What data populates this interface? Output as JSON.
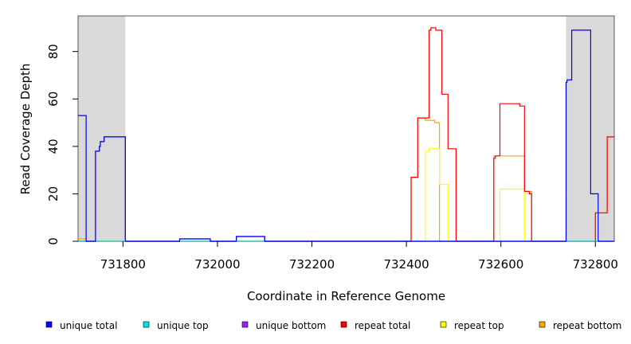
{
  "chart_data": {
    "type": "line",
    "xlabel": "Coordinate in Reference Genome",
    "ylabel": "Read Coverage Depth",
    "xlim": [
      731705,
      732840
    ],
    "ylim": [
      0,
      95
    ],
    "x_ticks": [
      731800,
      732000,
      732200,
      732400,
      732600,
      732800
    ],
    "x_tick_labels": [
      "731800",
      "732000",
      "732200",
      "732400",
      "732600",
      "732800"
    ],
    "y_ticks": [
      0,
      20,
      40,
      60,
      80
    ],
    "y_tick_labels": [
      "0",
      "20",
      "40",
      "60",
      "80"
    ],
    "shaded_regions": [
      [
        731705,
        731805
      ],
      [
        732738,
        732840
      ]
    ],
    "grid": false,
    "legend_position": "bottom",
    "series": [
      {
        "name": "unique total",
        "color": "#0000ff",
        "points": [
          [
            731705,
            53
          ],
          [
            731722,
            53
          ],
          [
            731722,
            0
          ],
          [
            731742,
            0
          ],
          [
            731742,
            38
          ],
          [
            731750,
            38
          ],
          [
            731750,
            40
          ],
          [
            731752,
            40
          ],
          [
            731752,
            42
          ],
          [
            731760,
            42
          ],
          [
            731760,
            44
          ],
          [
            731805,
            44
          ],
          [
            731805,
            0
          ],
          [
            731920,
            0
          ],
          [
            731920,
            1
          ],
          [
            731985,
            1
          ],
          [
            731985,
            0
          ],
          [
            732040,
            0
          ],
          [
            732040,
            2
          ],
          [
            732100,
            2
          ],
          [
            732100,
            0
          ],
          [
            732738,
            0
          ],
          [
            732738,
            67
          ],
          [
            732740,
            67
          ],
          [
            732740,
            68
          ],
          [
            732750,
            68
          ],
          [
            732750,
            89
          ],
          [
            732790,
            89
          ],
          [
            732790,
            20
          ],
          [
            732806,
            20
          ],
          [
            732806,
            0
          ],
          [
            732840,
            0
          ]
        ]
      },
      {
        "name": "unique top",
        "color": "#00e5e5",
        "points": [
          [
            731705,
            0
          ],
          [
            732840,
            0
          ]
        ]
      },
      {
        "name": "unique bottom",
        "color": "#a020f0",
        "points": [
          [
            731705,
            0
          ],
          [
            731742,
            0
          ],
          [
            731742,
            38
          ],
          [
            731750,
            38
          ],
          [
            731750,
            40
          ],
          [
            731752,
            40
          ],
          [
            731752,
            42
          ],
          [
            731760,
            42
          ],
          [
            731760,
            44
          ],
          [
            731805,
            44
          ],
          [
            731805,
            0
          ],
          [
            731920,
            0
          ],
          [
            731920,
            1
          ],
          [
            731985,
            1
          ],
          [
            731985,
            0
          ],
          [
            732040,
            0
          ],
          [
            732040,
            2
          ],
          [
            732100,
            2
          ],
          [
            732100,
            0
          ],
          [
            732840,
            0
          ]
        ]
      },
      {
        "name": "repeat total",
        "color": "#ff0000",
        "points": [
          [
            731705,
            0
          ],
          [
            732410,
            0
          ],
          [
            732410,
            27
          ],
          [
            732424,
            27
          ],
          [
            732424,
            52
          ],
          [
            732448,
            52
          ],
          [
            732448,
            89
          ],
          [
            732452,
            89
          ],
          [
            732452,
            90
          ],
          [
            732462,
            90
          ],
          [
            732462,
            89
          ],
          [
            732475,
            89
          ],
          [
            732475,
            62
          ],
          [
            732488,
            62
          ],
          [
            732488,
            39
          ],
          [
            732505,
            39
          ],
          [
            732505,
            0
          ],
          [
            732585,
            0
          ],
          [
            732585,
            35
          ],
          [
            732588,
            35
          ],
          [
            732588,
            36
          ],
          [
            732598,
            36
          ],
          [
            732598,
            58
          ],
          [
            732640,
            58
          ],
          [
            732640,
            57
          ],
          [
            732650,
            57
          ],
          [
            732650,
            21
          ],
          [
            732660,
            21
          ],
          [
            732660,
            20
          ],
          [
            732665,
            20
          ],
          [
            732665,
            0
          ],
          [
            732800,
            0
          ],
          [
            732800,
            12
          ],
          [
            732825,
            12
          ],
          [
            732825,
            44
          ],
          [
            732840,
            44
          ]
        ]
      },
      {
        "name": "repeat top",
        "color": "#ffff00",
        "points": [
          [
            731705,
            0
          ],
          [
            732440,
            0
          ],
          [
            732440,
            38
          ],
          [
            732448,
            38
          ],
          [
            732448,
            39
          ],
          [
            732470,
            39
          ],
          [
            732470,
            24
          ],
          [
            732488,
            24
          ],
          [
            732488,
            0
          ],
          [
            732598,
            0
          ],
          [
            732598,
            22
          ],
          [
            732650,
            22
          ],
          [
            732650,
            0
          ],
          [
            732840,
            0
          ]
        ]
      },
      {
        "name": "repeat bottom",
        "color": "#ffa500",
        "points": [
          [
            731705,
            1
          ],
          [
            731722,
            1
          ],
          [
            731722,
            0
          ],
          [
            732410,
            0
          ],
          [
            732410,
            27
          ],
          [
            732424,
            27
          ],
          [
            732424,
            52
          ],
          [
            732440,
            52
          ],
          [
            732440,
            51
          ],
          [
            732460,
            51
          ],
          [
            732460,
            50
          ],
          [
            732470,
            50
          ],
          [
            732470,
            0
          ],
          [
            732505,
            0
          ],
          [
            732585,
            0
          ],
          [
            732585,
            36
          ],
          [
            732598,
            36
          ],
          [
            732598,
            36
          ],
          [
            732650,
            36
          ],
          [
            732650,
            21
          ],
          [
            732665,
            21
          ],
          [
            732665,
            0
          ],
          [
            732800,
            0
          ],
          [
            732800,
            12
          ],
          [
            732825,
            12
          ],
          [
            732825,
            44
          ],
          [
            732840,
            44
          ]
        ]
      }
    ]
  }
}
